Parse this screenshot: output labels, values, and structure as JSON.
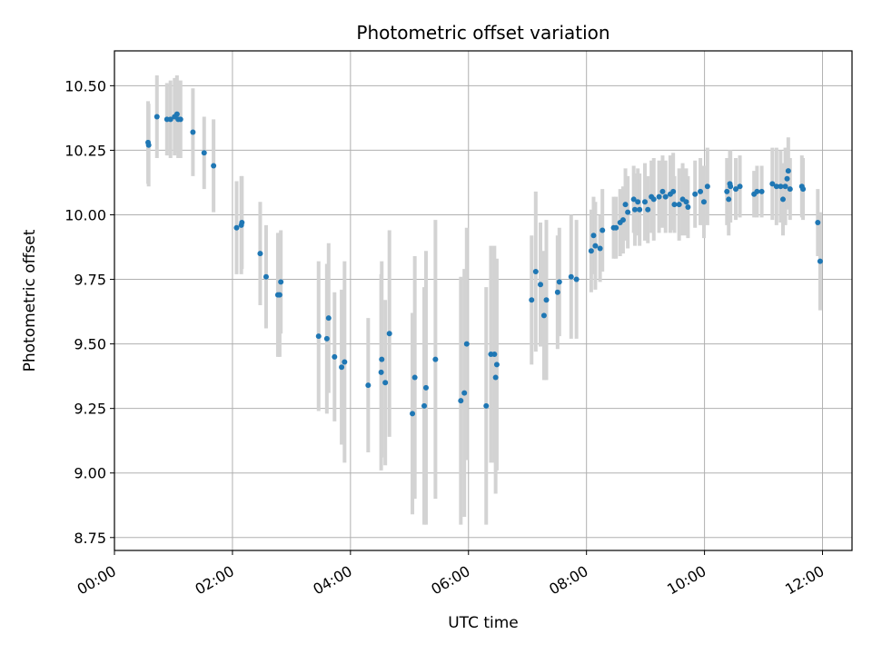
{
  "chart_data": {
    "type": "scatter",
    "title": "Photometric offset variation",
    "xlabel": "UTC time",
    "ylabel": "Photometric offset",
    "xlim": [
      0.0,
      12.5
    ],
    "ylim": [
      8.7,
      10.635
    ],
    "grid": true,
    "x_ticks": [
      0,
      2,
      4,
      6,
      8,
      10,
      12
    ],
    "x_tick_labels": [
      "00:00",
      "02:00",
      "04:00",
      "06:00",
      "08:00",
      "10:00",
      "12:00"
    ],
    "y_ticks": [
      8.75,
      9.0,
      9.25,
      9.5,
      9.75,
      10.0,
      10.25,
      10.5
    ],
    "y_tick_labels": [
      "8.75",
      "9.00",
      "9.25",
      "9.50",
      "9.75",
      "10.00",
      "10.25",
      "10.50"
    ],
    "marker_color": "#1f77b4",
    "errorbar_color": "#d3d3d3",
    "series": [
      {
        "name": "Photometric offset",
        "x": [
          0.57,
          0.58,
          0.72,
          0.89,
          0.95,
          1.02,
          1.06,
          1.08,
          1.12,
          1.33,
          1.52,
          1.68,
          2.07,
          2.15,
          2.16,
          2.47,
          2.57,
          2.77,
          2.8,
          2.82,
          3.46,
          3.6,
          3.63,
          3.73,
          3.85,
          3.9,
          4.3,
          4.52,
          4.53,
          4.59,
          4.66,
          5.05,
          5.09,
          5.25,
          5.28,
          5.44,
          5.87,
          5.93,
          5.97,
          6.3,
          6.38,
          6.44,
          6.46,
          6.48,
          7.07,
          7.14,
          7.22,
          7.28,
          7.32,
          7.51,
          7.54,
          7.74,
          7.83,
          8.08,
          8.12,
          8.15,
          8.23,
          8.27,
          8.46,
          8.5,
          8.57,
          8.62,
          8.66,
          8.7,
          8.8,
          8.82,
          8.87,
          8.9,
          8.99,
          9.04,
          9.1,
          9.14,
          9.23,
          9.29,
          9.34,
          9.42,
          9.47,
          9.49,
          9.57,
          9.63,
          9.69,
          9.72,
          9.84,
          9.93,
          9.99,
          10.05,
          10.38,
          10.41,
          10.43,
          10.44,
          10.53,
          10.6,
          10.84,
          10.89,
          10.97,
          11.15,
          11.22,
          11.29,
          11.33,
          11.37,
          11.4,
          11.42,
          11.45,
          11.65,
          11.67,
          11.92,
          11.96
        ],
        "y": [
          10.28,
          10.27,
          10.38,
          10.37,
          10.37,
          10.38,
          10.39,
          10.37,
          10.37,
          10.32,
          10.24,
          10.19,
          9.95,
          9.96,
          9.97,
          9.85,
          9.76,
          9.69,
          9.69,
          9.74,
          9.53,
          9.52,
          9.6,
          9.45,
          9.41,
          9.43,
          9.34,
          9.39,
          9.44,
          9.35,
          9.54,
          9.23,
          9.37,
          9.26,
          9.33,
          9.44,
          9.28,
          9.31,
          9.5,
          9.26,
          9.46,
          9.46,
          9.37,
          9.42,
          9.67,
          9.78,
          9.73,
          9.61,
          9.67,
          9.7,
          9.74,
          9.76,
          9.75,
          9.86,
          9.92,
          9.88,
          9.87,
          9.94,
          9.95,
          9.95,
          9.97,
          9.98,
          10.04,
          10.01,
          10.06,
          10.02,
          10.05,
          10.02,
          10.05,
          10.02,
          10.07,
          10.06,
          10.07,
          10.09,
          10.07,
          10.08,
          10.09,
          10.04,
          10.04,
          10.06,
          10.05,
          10.03,
          10.08,
          10.09,
          10.05,
          10.11,
          10.09,
          10.06,
          10.12,
          10.11,
          10.1,
          10.11,
          10.08,
          10.09,
          10.09,
          10.12,
          10.11,
          10.11,
          10.06,
          10.11,
          10.14,
          10.17,
          10.1,
          10.11,
          10.1,
          9.97,
          9.82
        ],
        "yerr": [
          0.16,
          0.16,
          0.16,
          0.14,
          0.15,
          0.15,
          0.15,
          0.15,
          0.15,
          0.17,
          0.14,
          0.18,
          0.18,
          0.19,
          0.18,
          0.2,
          0.2,
          0.24,
          0.24,
          0.2,
          0.29,
          0.29,
          0.29,
          0.25,
          0.3,
          0.39,
          0.26,
          0.38,
          0.38,
          0.32,
          0.4,
          0.39,
          0.47,
          0.46,
          0.53,
          0.54,
          0.48,
          0.48,
          0.45,
          0.46,
          0.42,
          0.42,
          0.45,
          0.41,
          0.25,
          0.31,
          0.24,
          0.25,
          0.31,
          0.22,
          0.21,
          0.24,
          0.23,
          0.16,
          0.15,
          0.17,
          0.13,
          0.16,
          0.12,
          0.12,
          0.13,
          0.13,
          0.14,
          0.14,
          0.13,
          0.14,
          0.13,
          0.14,
          0.15,
          0.13,
          0.14,
          0.16,
          0.14,
          0.14,
          0.14,
          0.15,
          0.15,
          0.11,
          0.14,
          0.14,
          0.13,
          0.12,
          0.13,
          0.13,
          0.14,
          0.15,
          0.13,
          0.14,
          0.13,
          0.14,
          0.12,
          0.12,
          0.09,
          0.1,
          0.1,
          0.14,
          0.15,
          0.14,
          0.14,
          0.15,
          0.12,
          0.13,
          0.12,
          0.12,
          0.12,
          0.13,
          0.19
        ]
      }
    ]
  }
}
